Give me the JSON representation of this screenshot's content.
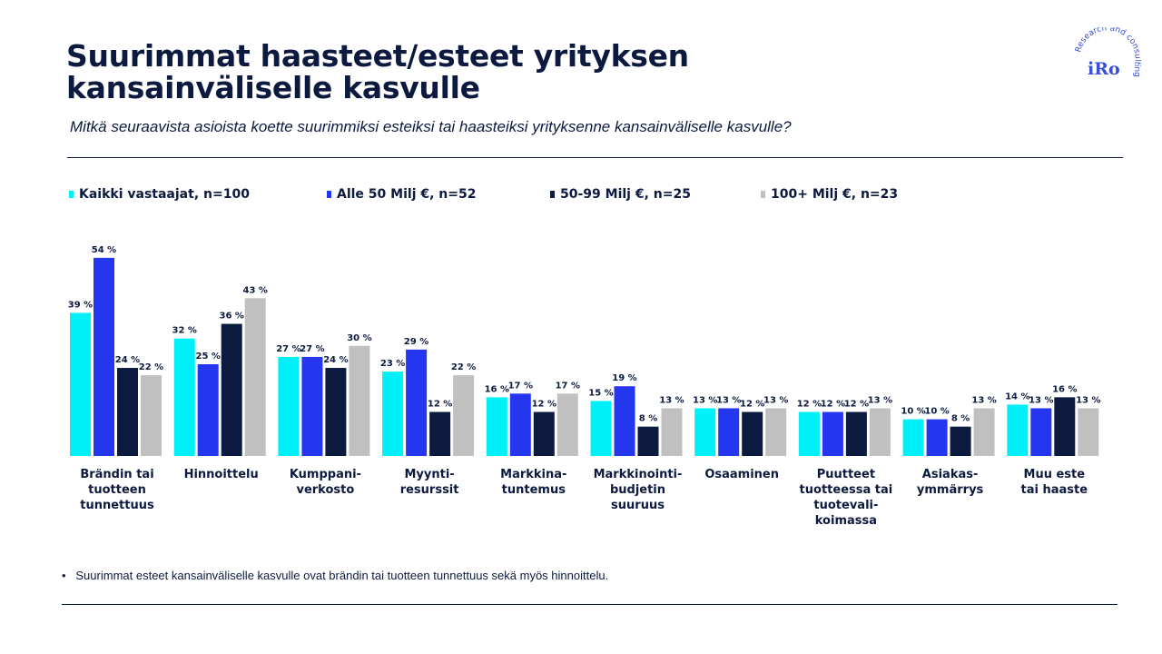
{
  "title": "Suurimmat haasteet/esteet yrityksen\nkansainväliselle kasvulle",
  "subtitle": "Mitkä seuraavista asioista koette suurimmiksi esteiksi tai haasteiksi yrityksenne kansainväliselle kasvulle?",
  "logo": {
    "text": "iRo",
    "tagline": "Research and consulting"
  },
  "note": "Suurimmat esteet kansainväliselle kasvulle ovat brändin tai tuotteen tunnettuus sekä myös hinnoittelu.",
  "chart_data": {
    "type": "bar",
    "unit": "%",
    "ylim": [
      0,
      60
    ],
    "grid": false,
    "legend_placement": "top",
    "categories": [
      "Brändin tai\ntuotteen\ntunnettuus",
      "Hinnoittelu",
      "Kumppani-\nverkosto",
      "Myynti-\nresurssit",
      "Markkina-\ntuntemus",
      "Markkinointi-\nbudjetin\nsuuruus",
      "Osaaminen",
      "Puutteet\ntuotteessa tai\ntuotevali-\nkoimassa",
      "Asiakas-\nymmärrys",
      "Muu este\ntai haaste"
    ],
    "series": [
      {
        "name": "Kaikki vastaajat, n=100",
        "color": "#00f0fa",
        "values": [
          39,
          32,
          27,
          23,
          16,
          15,
          13,
          12,
          10,
          14
        ]
      },
      {
        "name": "Alle 50 Milj €, n=52",
        "color": "#2436ee",
        "values": [
          54,
          25,
          27,
          29,
          17,
          19,
          13,
          12,
          10,
          13
        ]
      },
      {
        "name": "50-99 Milj €, n=25",
        "color": "#0d1a40",
        "values": [
          24,
          36,
          24,
          12,
          12,
          8,
          12,
          12,
          8,
          16
        ]
      },
      {
        "name": "100+ Milj €, n=23",
        "color": "#c0c0c0",
        "values": [
          22,
          43,
          30,
          22,
          17,
          13,
          13,
          13,
          13,
          13
        ]
      }
    ]
  }
}
